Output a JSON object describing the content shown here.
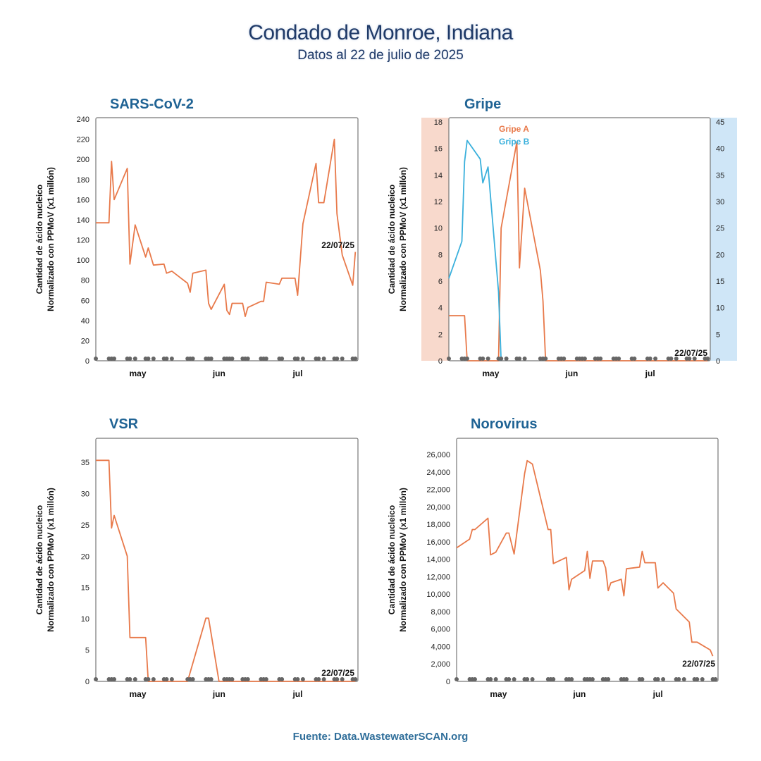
{
  "header": {
    "title": "Condado de Monroe, Indiana",
    "subtitle": "Datos al 22 de julio de 2025"
  },
  "footer": {
    "source": "Fuente: Data.WastewaterSCAN.org"
  },
  "colors": {
    "line_a": "#e8794a",
    "line_b": "#3ab0dc",
    "dots": "#666666",
    "title": "#1f6394",
    "band_a": "#f8d9cc",
    "band_b": "#cfe6f7"
  },
  "chart_data": [
    {
      "id": "sars",
      "type": "line",
      "title": "SARS-CoV-2",
      "ylabel": [
        "Cantidad de ácido nucleico",
        "Normalizado con PPMoV (x1 millón)"
      ],
      "ylim": [
        0,
        240
      ],
      "yticks": [
        "0",
        "20",
        "40",
        "60",
        "80",
        "100",
        "120",
        "140",
        "160",
        "180",
        "200",
        "220",
        "240"
      ],
      "xlim": [
        "2025-04-15",
        "2025-07-24"
      ],
      "xticks": [
        {
          "label": "may",
          "date": "2025-05-01"
        },
        {
          "label": "jun",
          "date": "2025-06-01"
        },
        {
          "label": "jul",
          "date": "2025-07-01"
        }
      ],
      "date_label": "22/07/25",
      "series": [
        {
          "values": [
            [
              "2025-04-15",
              137
            ],
            [
              "2025-04-20",
              137
            ],
            [
              "2025-04-21",
              198
            ],
            [
              "2025-04-22",
              160
            ],
            [
              "2025-04-27",
              191
            ],
            [
              "2025-04-28",
              96
            ],
            [
              "2025-04-30",
              135
            ],
            [
              "2025-05-04",
              103
            ],
            [
              "2025-05-05",
              112
            ],
            [
              "2025-05-07",
              95
            ],
            [
              "2025-05-11",
              96
            ],
            [
              "2025-05-12",
              87
            ],
            [
              "2025-05-14",
              89
            ],
            [
              "2025-05-20",
              77
            ],
            [
              "2025-05-21",
              68
            ],
            [
              "2025-05-22",
              87
            ],
            [
              "2025-05-27",
              90
            ],
            [
              "2025-05-28",
              57
            ],
            [
              "2025-05-29",
              51
            ],
            [
              "2025-06-03",
              76
            ],
            [
              "2025-06-04",
              50
            ],
            [
              "2025-06-05",
              46
            ],
            [
              "2025-06-06",
              57
            ],
            [
              "2025-06-10",
              57
            ],
            [
              "2025-06-11",
              44
            ],
            [
              "2025-06-12",
              53
            ],
            [
              "2025-06-17",
              59
            ],
            [
              "2025-06-18",
              59
            ],
            [
              "2025-06-19",
              78
            ],
            [
              "2025-06-24",
              76
            ],
            [
              "2025-06-25",
              82
            ],
            [
              "2025-06-30",
              82
            ],
            [
              "2025-07-01",
              65
            ],
            [
              "2025-07-03",
              136
            ],
            [
              "2025-07-08",
              196
            ],
            [
              "2025-07-09",
              157
            ],
            [
              "2025-07-11",
              157
            ],
            [
              "2025-07-15",
              220
            ],
            [
              "2025-07-16",
              146
            ],
            [
              "2025-07-18",
              105
            ],
            [
              "2025-07-22",
              75
            ],
            [
              "2025-07-23",
              108
            ]
          ]
        }
      ]
    },
    {
      "id": "gripe",
      "type": "line",
      "title": "Gripe",
      "ylabel": [
        "Cantidad de ácido nucleico",
        "Normalizado con PPMoV (x1 millón)"
      ],
      "ylim": [
        0,
        18
      ],
      "yticks": [
        "0",
        "2",
        "4",
        "6",
        "8",
        "10",
        "12",
        "14",
        "16",
        "18"
      ],
      "y2lim": [
        0,
        45
      ],
      "y2ticks": [
        "0",
        "5",
        "10",
        "15",
        "20",
        "25",
        "30",
        "35",
        "40",
        "45"
      ],
      "xlim": [
        "2025-04-15",
        "2025-07-24"
      ],
      "xticks": [
        {
          "label": "may",
          "date": "2025-05-01"
        },
        {
          "label": "jun",
          "date": "2025-06-01"
        },
        {
          "label": "jul",
          "date": "2025-07-01"
        }
      ],
      "date_label": "22/07/25",
      "series": [
        {
          "name": "Gripe A",
          "axis": "left",
          "values": [
            [
              "2025-04-15",
              3.4
            ],
            [
              "2025-04-21",
              3.4
            ],
            [
              "2025-04-22",
              0
            ],
            [
              "2025-05-04",
              0
            ],
            [
              "2025-05-05",
              10
            ],
            [
              "2025-05-11",
              16.5
            ],
            [
              "2025-05-12",
              7
            ],
            [
              "2025-05-14",
              13
            ],
            [
              "2025-05-20",
              6.8
            ],
            [
              "2025-05-21",
              4.5
            ],
            [
              "2025-05-22",
              0
            ],
            [
              "2025-07-23",
              0
            ]
          ]
        },
        {
          "name": "Gripe B",
          "axis": "right",
          "values": [
            [
              "2025-04-15",
              15.5
            ],
            [
              "2025-04-20",
              22.5
            ],
            [
              "2025-04-21",
              37.5
            ],
            [
              "2025-04-22",
              41.5
            ],
            [
              "2025-04-27",
              38
            ],
            [
              "2025-04-28",
              33.5
            ],
            [
              "2025-04-30",
              36.5
            ],
            [
              "2025-05-04",
              13
            ],
            [
              "2025-05-05",
              0
            ]
          ]
        }
      ]
    },
    {
      "id": "vsr",
      "type": "line",
      "title": "VSR",
      "ylabel": [
        "Cantidad de ácido nucleico",
        "Normalizado con PPMoV (x1 millón)"
      ],
      "ylim": [
        0,
        38.5
      ],
      "yticks": [
        "0",
        "5",
        "10",
        "15",
        "20",
        "25",
        "30",
        "35"
      ],
      "xlim": [
        "2025-04-15",
        "2025-07-24"
      ],
      "xticks": [
        {
          "label": "may",
          "date": "2025-05-01"
        },
        {
          "label": "jun",
          "date": "2025-06-01"
        },
        {
          "label": "jul",
          "date": "2025-07-01"
        }
      ],
      "date_label": "22/07/25",
      "series": [
        {
          "values": [
            [
              "2025-04-15",
              35.3
            ],
            [
              "2025-04-20",
              35.3
            ],
            [
              "2025-04-21",
              24.5
            ],
            [
              "2025-04-22",
              26.5
            ],
            [
              "2025-04-27",
              20
            ],
            [
              "2025-04-28",
              7
            ],
            [
              "2025-05-04",
              7
            ],
            [
              "2025-05-05",
              0
            ],
            [
              "2025-05-20",
              0
            ],
            [
              "2025-05-27",
              10.1
            ],
            [
              "2025-05-28",
              10.1
            ],
            [
              "2025-06-01",
              0
            ],
            [
              "2025-07-23",
              0
            ]
          ]
        }
      ]
    },
    {
      "id": "noro",
      "type": "line",
      "title": "Norovirus",
      "ylabel": [
        "Cantidad de ácido nucleico",
        "Normalizado con PPMoV (x1 millón)"
      ],
      "ylim": [
        0,
        27500
      ],
      "yticks": [
        "0",
        "2,000",
        "4,000",
        "6,000",
        "8,000",
        "10,000",
        "12,000",
        "14,000",
        "16,000",
        "18,000",
        "20,000",
        "22,000",
        "24,000",
        "26,000"
      ],
      "xlim": [
        "2025-04-15",
        "2025-07-24"
      ],
      "xticks": [
        {
          "label": "may",
          "date": "2025-05-01"
        },
        {
          "label": "jun",
          "date": "2025-06-01"
        },
        {
          "label": "jul",
          "date": "2025-07-01"
        }
      ],
      "date_label": "22/07/25",
      "series": [
        {
          "values": [
            [
              "2025-04-15",
              15300
            ],
            [
              "2025-04-20",
              16300
            ],
            [
              "2025-04-21",
              17400
            ],
            [
              "2025-04-22",
              17400
            ],
            [
              "2025-04-27",
              18700
            ],
            [
              "2025-04-28",
              14500
            ],
            [
              "2025-04-30",
              14800
            ],
            [
              "2025-05-04",
              17000
            ],
            [
              "2025-05-05",
              17000
            ],
            [
              "2025-05-07",
              14600
            ],
            [
              "2025-05-11",
              23800
            ],
            [
              "2025-05-12",
              25300
            ],
            [
              "2025-05-14",
              24900
            ],
            [
              "2025-05-20",
              17400
            ],
            [
              "2025-05-21",
              17400
            ],
            [
              "2025-05-22",
              13500
            ],
            [
              "2025-05-27",
              14200
            ],
            [
              "2025-05-28",
              10500
            ],
            [
              "2025-05-29",
              11700
            ],
            [
              "2025-06-03",
              12700
            ],
            [
              "2025-06-04",
              14900
            ],
            [
              "2025-06-05",
              11800
            ],
            [
              "2025-06-06",
              13800
            ],
            [
              "2025-06-10",
              13800
            ],
            [
              "2025-06-11",
              13000
            ],
            [
              "2025-06-12",
              10400
            ],
            [
              "2025-06-13",
              11300
            ],
            [
              "2025-06-17",
              11700
            ],
            [
              "2025-06-18",
              9800
            ],
            [
              "2025-06-19",
              12900
            ],
            [
              "2025-06-24",
              13100
            ],
            [
              "2025-06-25",
              14900
            ],
            [
              "2025-06-26",
              13600
            ],
            [
              "2025-06-30",
              13600
            ],
            [
              "2025-07-01",
              10700
            ],
            [
              "2025-07-03",
              11300
            ],
            [
              "2025-07-07",
              10100
            ],
            [
              "2025-07-08",
              8300
            ],
            [
              "2025-07-13",
              6800
            ],
            [
              "2025-07-14",
              4500
            ],
            [
              "2025-07-16",
              4500
            ],
            [
              "2025-07-21",
              3600
            ],
            [
              "2025-07-22",
              2900
            ]
          ]
        }
      ]
    }
  ]
}
